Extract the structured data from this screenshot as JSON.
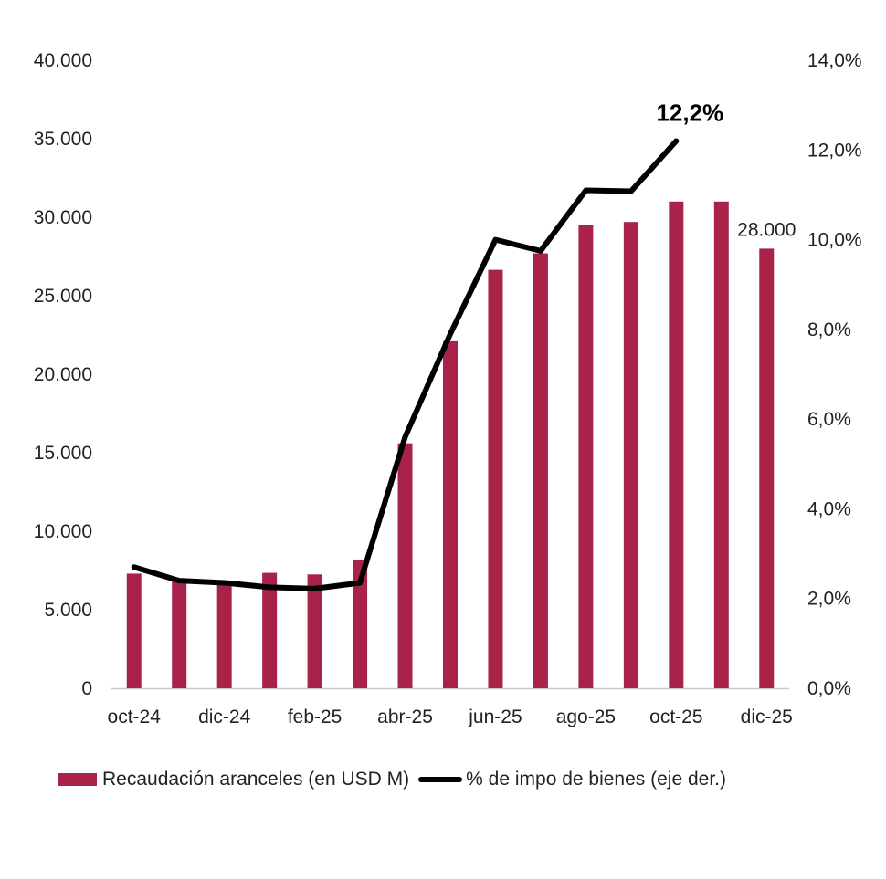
{
  "colors": {
    "bar": "#A8224A",
    "line": "#000000",
    "axis": "#c8c8c8"
  },
  "chart_data": {
    "type": "bar",
    "categories": [
      "oct-24",
      "nov-24",
      "dic-24",
      "ene-25",
      "feb-25",
      "mar-25",
      "abr-25",
      "may-25",
      "jun-25",
      "jul-25",
      "ago-25",
      "sep-25",
      "oct-25",
      "nov-25",
      "dic-25"
    ],
    "x_tick_labels": [
      "oct-24",
      "dic-24",
      "feb-25",
      "abr-25",
      "jun-25",
      "ago-25",
      "oct-25",
      "dic-25"
    ],
    "series": [
      {
        "name": "Recaudación aranceles (en USD M)",
        "kind": "bar",
        "axis": "left",
        "values": [
          7300,
          6900,
          6700,
          7350,
          7250,
          8200,
          15600,
          22100,
          26650,
          27700,
          29500,
          29700,
          31000,
          31000,
          28000
        ]
      },
      {
        "name": "% de impo de bienes (eje der.)",
        "kind": "line",
        "axis": "right",
        "values": [
          2.7,
          2.4,
          2.35,
          2.25,
          2.22,
          2.35,
          5.6,
          7.9,
          10.0,
          9.75,
          11.1,
          11.08,
          12.2,
          null,
          null
        ]
      }
    ],
    "y_left": {
      "min": 0,
      "max": 40000,
      "step": 5000,
      "tick_labels": [
        "0",
        "5.000",
        "10.000",
        "15.000",
        "20.000",
        "25.000",
        "30.000",
        "35.000",
        "40.000"
      ]
    },
    "y_right": {
      "min": 0,
      "max": 14,
      "step": 2,
      "tick_labels": [
        "0,0%",
        "2,0%",
        "4,0%",
        "6,0%",
        "8,0%",
        "10,0%",
        "12,0%",
        "14,0%"
      ]
    },
    "annotations": [
      {
        "series": 0,
        "index": 14,
        "text": "28.000"
      },
      {
        "series": 1,
        "index": 12,
        "text": "12,2%"
      }
    ],
    "legend_position": "bottom"
  },
  "legend": {
    "bar_label": "Recaudación aranceles (en USD M)",
    "line_label": "% de impo de bienes (eje der.)"
  }
}
